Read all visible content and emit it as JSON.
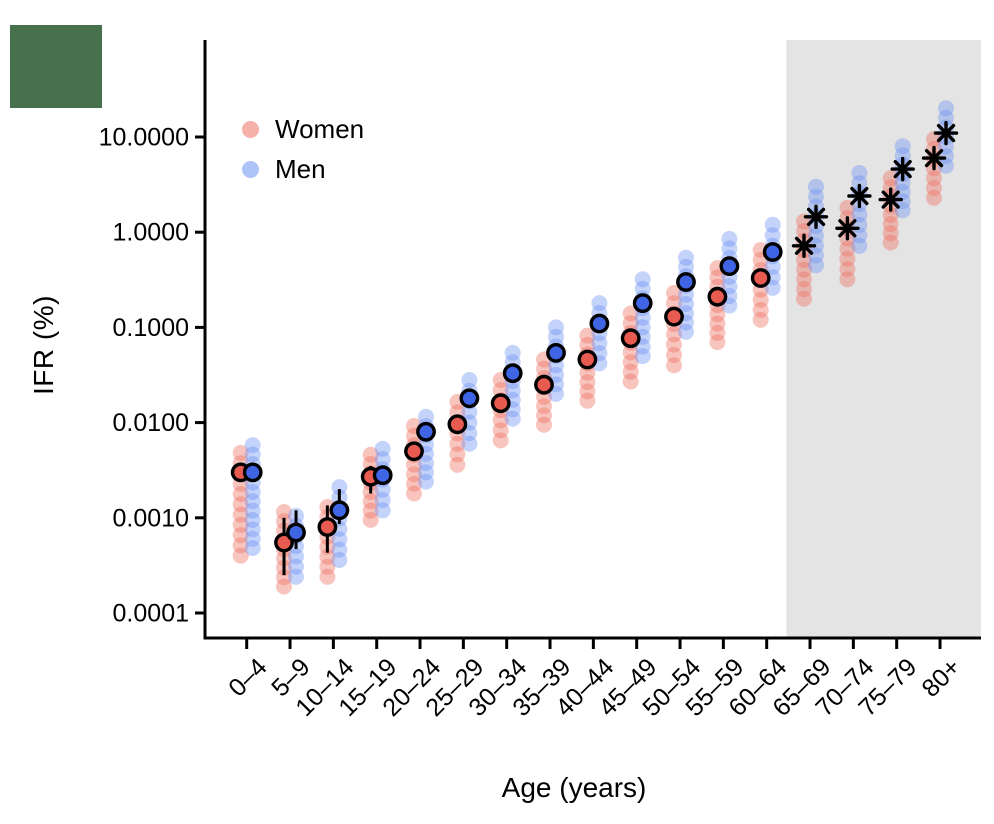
{
  "decor": {
    "green_square_color": "#47714D"
  },
  "chart_data": {
    "type": "scatter",
    "title": "",
    "xlabel": "Age (years)",
    "ylabel": "IFR (%)",
    "y_scale": "log",
    "grid": false,
    "legend_position": "top-left-inside",
    "axis_color": "#000000",
    "y_ticks": [
      {
        "label": "10.0000",
        "value": 10
      },
      {
        "label": "1.0000",
        "value": 1
      },
      {
        "label": "0.1000",
        "value": 0.1
      },
      {
        "label": "0.0100",
        "value": 0.01
      },
      {
        "label": "0.0010",
        "value": 0.001
      },
      {
        "label": "0.0001",
        "value": 0.0001
      }
    ],
    "ylim": [
      5e-05,
      40
    ],
    "categories": [
      "0–4",
      "5–9",
      "10–14",
      "15–19",
      "20–24",
      "25–29",
      "30–34",
      "35–39",
      "40–44",
      "45–49",
      "50–54",
      "55–59",
      "60–64",
      "65–69",
      "70–74",
      "75–79",
      "80+"
    ],
    "highlight_region": {
      "start_category": "65–69",
      "end_category": "80+",
      "color": "#E4E4E4"
    },
    "legend": [
      {
        "label": "Women",
        "swatch_color": "rgba(238,114,101,0.55)"
      },
      {
        "label": "Men",
        "swatch_color": "rgba(107,146,242,0.55)"
      }
    ],
    "central_marker_by_age": [
      "circle",
      "circle",
      "circle",
      "circle",
      "circle",
      "circle",
      "circle",
      "circle",
      "circle",
      "circle",
      "circle",
      "circle",
      "circle",
      "asterisk",
      "asterisk",
      "asterisk",
      "asterisk"
    ],
    "series": [
      {
        "name": "Women",
        "marker_color": "#E85B51",
        "strip_color": "#EE7265",
        "strip_opacity": 0.42,
        "central": [
          0.003,
          0.00055,
          0.0008,
          0.0027,
          0.005,
          0.0096,
          0.016,
          0.025,
          0.046,
          0.077,
          0.13,
          0.21,
          0.33,
          0.72,
          1.1,
          2.2,
          6.0
        ],
        "strip_low": [
          0.0004,
          0.00019,
          0.00024,
          0.00095,
          0.0018,
          0.0036,
          0.0065,
          0.0095,
          0.017,
          0.027,
          0.04,
          0.07,
          0.12,
          0.2,
          0.32,
          0.78,
          2.3
        ],
        "strip_high": [
          0.0048,
          0.00115,
          0.0013,
          0.0046,
          0.0092,
          0.0165,
          0.028,
          0.046,
          0.082,
          0.14,
          0.23,
          0.42,
          0.65,
          1.3,
          1.8,
          3.7,
          9.5
        ]
      },
      {
        "name": "Men",
        "marker_color": "#3F65E4",
        "strip_color": "#6B92F2",
        "strip_opacity": 0.4,
        "central": [
          0.003,
          0.0007,
          0.0012,
          0.0028,
          0.008,
          0.018,
          0.033,
          0.054,
          0.11,
          0.18,
          0.3,
          0.44,
          0.62,
          1.45,
          2.4,
          4.6,
          11.0
        ],
        "strip_low": [
          0.00048,
          0.00024,
          0.00036,
          0.0012,
          0.0024,
          0.006,
          0.011,
          0.02,
          0.042,
          0.05,
          0.09,
          0.17,
          0.26,
          0.45,
          0.72,
          1.7,
          5.0
        ],
        "strip_high": [
          0.0058,
          0.00105,
          0.0021,
          0.0053,
          0.0115,
          0.028,
          0.054,
          0.1,
          0.18,
          0.32,
          0.54,
          0.85,
          1.2,
          3.0,
          4.2,
          8.0,
          20.0
        ]
      }
    ],
    "error_bars": [
      {
        "category": "5–9",
        "series": "Women",
        "low": 0.00025,
        "high": 0.001
      },
      {
        "category": "5–9",
        "series": "Men",
        "low": 0.00047,
        "high": 0.0012
      },
      {
        "category": "10–14",
        "series": "Women",
        "low": 0.00043,
        "high": 0.00135
      },
      {
        "category": "10–14",
        "series": "Men",
        "low": 0.00086,
        "high": 0.002
      },
      {
        "category": "15–19",
        "series": "Women",
        "low": 0.0018,
        "high": 0.0035
      }
    ]
  }
}
